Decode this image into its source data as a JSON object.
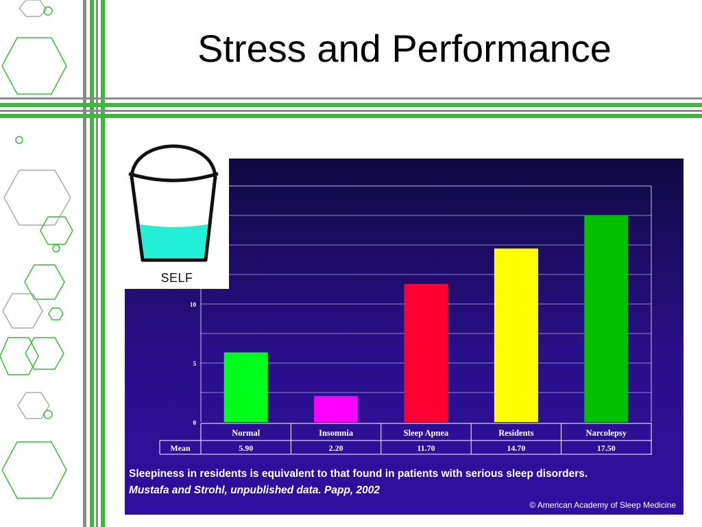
{
  "slide": {
    "title": "Stress and Performance",
    "accent_green": "#3cb83c",
    "accent_gray": "#8a8a8a"
  },
  "bucket": {
    "label": "SELF",
    "fill_color": "#22f0d8",
    "fill_level": 0.45
  },
  "chart_data": {
    "type": "bar",
    "title": "",
    "xlabel": "",
    "ylabel": "",
    "categories": [
      "Normal",
      "Insomnia",
      "Sleep Apnea",
      "Residents",
      "Narcolepsy"
    ],
    "values": [
      5.9,
      2.2,
      11.7,
      14.7,
      17.5
    ],
    "colors": [
      "#00ff1a",
      "#ff00ff",
      "#ff0033",
      "#ffff00",
      "#00c000"
    ],
    "table_row_label": "Mean",
    "table_values": [
      "5.90",
      "2.20",
      "11.70",
      "14.70",
      "17.50"
    ],
    "y_ticks": [
      "0",
      "5",
      "10"
    ],
    "ylim": [
      0,
      20
    ],
    "grid": true,
    "background": "#1f0d78"
  },
  "caption": {
    "line1": "Sleepiness in residents is equivalent to that found in patients with serious sleep disorders.",
    "line2": "Mustafa and Strohl, unpublished data. Papp, 2002",
    "copyright": "© American Academy of Sleep Medicine"
  }
}
